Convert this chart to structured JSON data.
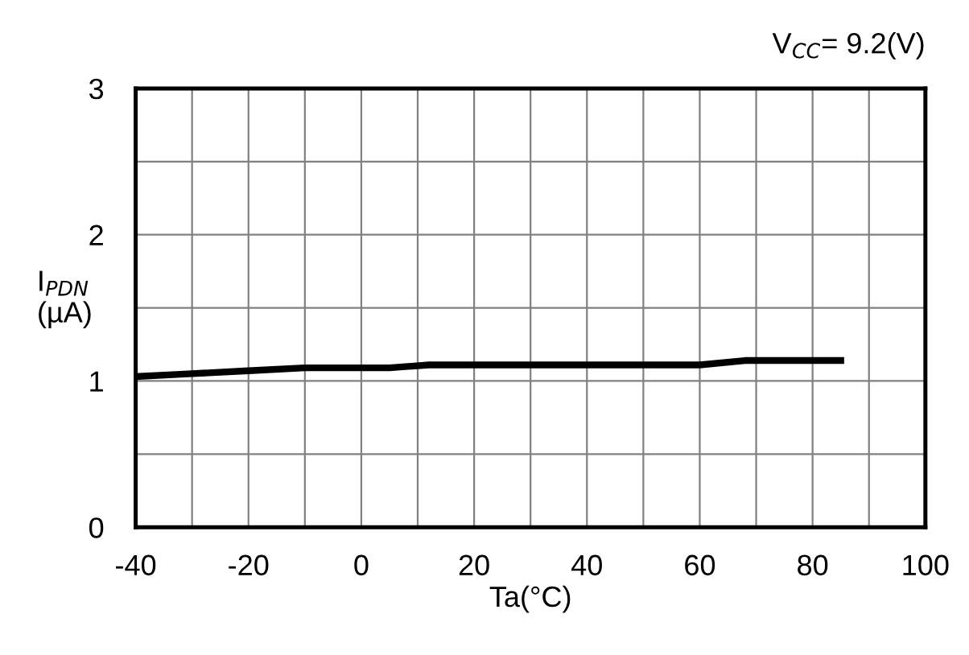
{
  "chart_data": {
    "type": "line",
    "xlabel": "Ta(°C)",
    "ylabel": "I$_{PDN}$\n(µA)",
    "annotations": [
      "V$_{CC}$= 9.2(V)"
    ],
    "x": [
      -40,
      -30,
      -20,
      -10,
      0,
      5,
      12,
      25,
      40,
      50,
      60,
      68,
      85
    ],
    "series": [
      {
        "color": "#000000",
        "values": [
          1.03,
          1.05,
          1.07,
          1.09,
          1.09,
          1.09,
          1.11,
          1.11,
          1.11,
          1.11,
          1.11,
          1.14,
          1.14
        ]
      }
    ],
    "xlim": [
      -40,
      100
    ],
    "ylim": [
      0,
      3
    ],
    "xticks": [
      -40,
      {
        "value": -30,
        "label": null
      },
      -20,
      {
        "value": -10,
        "label": null
      },
      0,
      {
        "value": 10,
        "label": null
      },
      20,
      {
        "value": 30,
        "label": null
      },
      40,
      {
        "value": 50,
        "label": null
      },
      60,
      {
        "value": 70,
        "label": null
      },
      80,
      {
        "value": 90,
        "label": null
      },
      100
    ],
    "yticks": [
      0,
      {
        "value": 0.5,
        "label": null
      },
      1,
      {
        "value": 1.5,
        "label": null
      },
      2,
      {
        "value": 2.5,
        "label": null
      },
      3
    ],
    "grid": true,
    "line_style": "solid",
    "marker": "none"
  }
}
